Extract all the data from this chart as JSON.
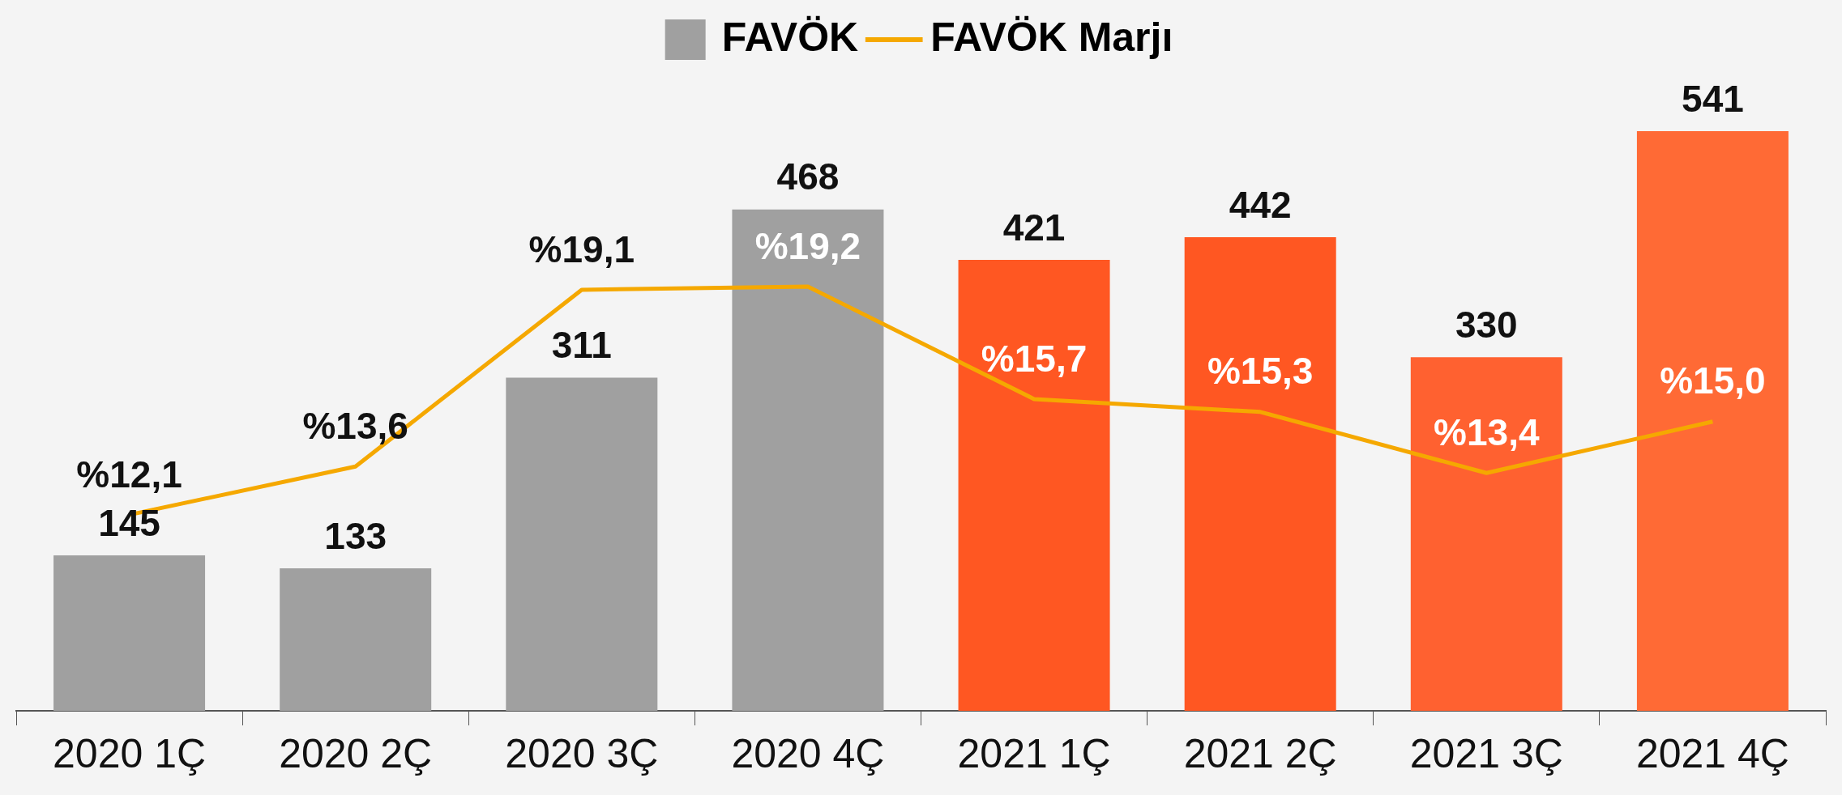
{
  "chart_data": {
    "type": "bar",
    "categories": [
      "2020 1Ç",
      "2020 2Ç",
      "2020 3Ç",
      "2020 4Ç",
      "2021 1Ç",
      "2021 2Ç",
      "2021 3Ç",
      "2021 4Ç"
    ],
    "series": [
      {
        "name": "FAVÖK",
        "values": [
          145,
          133,
          311,
          468,
          421,
          442,
          330,
          541
        ],
        "colors": [
          "#a0a0a0",
          "#a0a0a0",
          "#a0a0a0",
          "#a0a0a0",
          "#ff5722",
          "#ff5722",
          "#ff6130",
          "#ff6a35"
        ]
      },
      {
        "name": "FAVÖK Marjı",
        "type": "line",
        "axis": "y2",
        "color": "#f5a800",
        "values": [
          12.1,
          13.6,
          19.1,
          19.2,
          15.7,
          15.3,
          13.4,
          15.0
        ],
        "value_labels": [
          "%12,1",
          "%13,6",
          "%19,1",
          "%19,2",
          "%15,7",
          "%15,3",
          "%13,4",
          "%15,0"
        ]
      }
    ],
    "data_labels": true,
    "legend": "top",
    "grid": false,
    "tick_labels": "x",
    "marker": "none",
    "line_style": "solid"
  }
}
